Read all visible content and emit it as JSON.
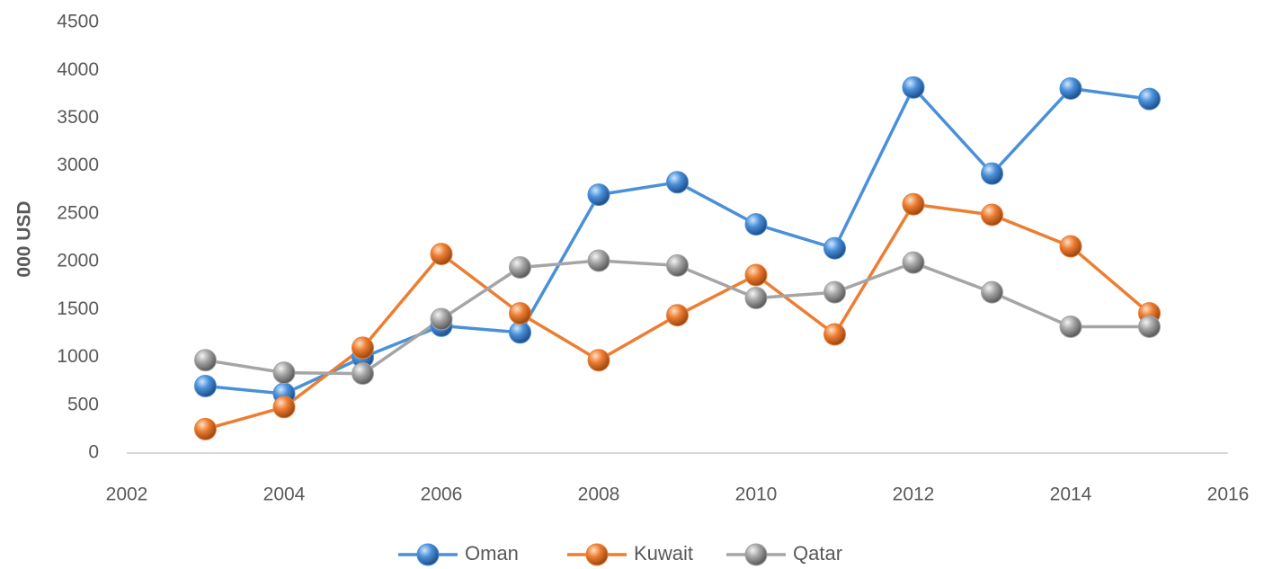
{
  "chart_data": {
    "type": "scatter",
    "mode": "lines+markers",
    "title": "",
    "xlabel": "",
    "ylabel": "000 USD",
    "xlim": [
      2002,
      2016
    ],
    "ylim": [
      0,
      4500
    ],
    "x_ticks": [
      2002,
      2004,
      2006,
      2008,
      2010,
      2012,
      2014,
      2016
    ],
    "y_ticks": [
      0,
      500,
      1000,
      1500,
      2000,
      2500,
      3000,
      3500,
      4000,
      4500
    ],
    "grid": false,
    "legend_position": "bottom",
    "x": [
      2003,
      2004,
      2005,
      2006,
      2007,
      2008,
      2009,
      2010,
      2011,
      2012,
      2013,
      2014,
      2015
    ],
    "series": [
      {
        "name": "Oman",
        "color": "#4a90d9",
        "values": [
          700,
          620,
          1000,
          1330,
          1260,
          2700,
          2830,
          2390,
          2140,
          3820,
          2920,
          3810,
          3700
        ]
      },
      {
        "name": "Kuwait",
        "color": "#ed7d31",
        "values": [
          250,
          480,
          1100,
          2080,
          1460,
          970,
          1440,
          1860,
          1240,
          2600,
          2490,
          2160,
          1460
        ]
      },
      {
        "name": "Qatar",
        "color": "#a5a5a5",
        "values": [
          970,
          840,
          830,
          1400,
          1940,
          2010,
          1960,
          1620,
          1680,
          1990,
          1680,
          1320,
          1320
        ]
      }
    ]
  }
}
